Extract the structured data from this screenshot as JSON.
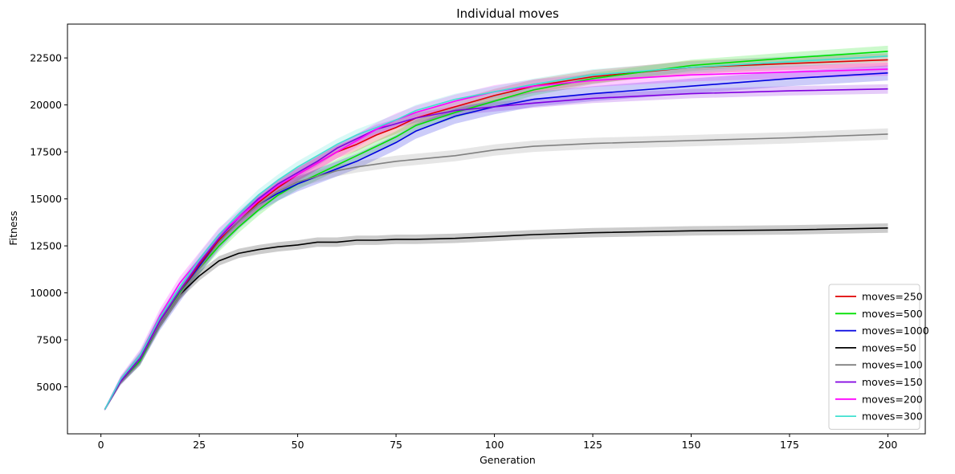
{
  "chart_data": {
    "type": "line",
    "title": "Individual moves",
    "xlabel": "Generation",
    "ylabel": "Fitness",
    "xlim": [
      -8.5,
      209.5
    ],
    "ylim": [
      2500,
      24300
    ],
    "xticks": [
      0,
      25,
      50,
      75,
      100,
      125,
      150,
      175,
      200
    ],
    "yticks": [
      5000,
      7500,
      10000,
      12500,
      15000,
      17500,
      20000,
      22500
    ],
    "legend_position": "lower right",
    "grid": false,
    "x": [
      1,
      5,
      10,
      15,
      20,
      25,
      30,
      35,
      40,
      45,
      50,
      55,
      60,
      65,
      70,
      75,
      80,
      90,
      100,
      110,
      125,
      150,
      175,
      200
    ],
    "series": [
      {
        "name": "moves=250",
        "color": "#e00000",
        "values": [
          3800,
          5300,
          6500,
          8500,
          10000,
          11500,
          12800,
          13800,
          14800,
          15600,
          16300,
          16900,
          17500,
          17900,
          18400,
          18800,
          19300,
          19900,
          20500,
          21000,
          21500,
          22000,
          22200,
          22400
        ],
        "band": 350
      },
      {
        "name": "moves=500",
        "color": "#00e000",
        "values": [
          3800,
          5300,
          6400,
          8400,
          10000,
          11300,
          12500,
          13500,
          14400,
          15200,
          15800,
          16300,
          16800,
          17300,
          17800,
          18300,
          18900,
          19600,
          20200,
          20800,
          21400,
          22100,
          22500,
          22850
        ],
        "band": 300
      },
      {
        "name": "moves=1000",
        "color": "#0000e0",
        "values": [
          3800,
          5300,
          6500,
          8400,
          9900,
          11400,
          12700,
          13800,
          14700,
          15300,
          15800,
          16200,
          16600,
          17000,
          17500,
          18000,
          18600,
          19400,
          19900,
          20300,
          20600,
          21000,
          21400,
          21700
        ],
        "band": 400
      },
      {
        "name": "moves=50",
        "color": "#000000",
        "values": [
          3800,
          5300,
          6500,
          8400,
          9900,
          10900,
          11700,
          12100,
          12300,
          12450,
          12550,
          12700,
          12700,
          12800,
          12800,
          12850,
          12850,
          12900,
          13000,
          13100,
          13200,
          13300,
          13350,
          13450
        ],
        "band": 250
      },
      {
        "name": "moves=100",
        "color": "#808080",
        "values": [
          3800,
          5300,
          6500,
          8400,
          9900,
          11300,
          12700,
          13800,
          14700,
          15400,
          15900,
          16200,
          16500,
          16700,
          16850,
          17000,
          17100,
          17300,
          17600,
          17800,
          17950,
          18100,
          18250,
          18450
        ],
        "band": 300
      },
      {
        "name": "moves=150",
        "color": "#8000e0",
        "values": [
          3800,
          5300,
          6500,
          8500,
          10100,
          11600,
          12900,
          14000,
          15000,
          15800,
          16400,
          17000,
          17700,
          18200,
          18700,
          19000,
          19300,
          19700,
          19900,
          20100,
          20350,
          20600,
          20750,
          20850
        ],
        "band": 250
      },
      {
        "name": "moves=200",
        "color": "#ff00ff",
        "values": [
          3800,
          5400,
          6700,
          8800,
          10500,
          11800,
          13100,
          14000,
          14900,
          15700,
          16300,
          16900,
          17500,
          18100,
          18700,
          19200,
          19600,
          20200,
          20700,
          21000,
          21300,
          21600,
          21750,
          21900
        ],
        "band": 350
      },
      {
        "name": "moves=300",
        "color": "#40e0d0",
        "values": [
          3800,
          5400,
          6700,
          8700,
          10300,
          11800,
          13100,
          14200,
          15200,
          16000,
          16700,
          17300,
          17900,
          18400,
          18800,
          19200,
          19700,
          20300,
          20700,
          21100,
          21600,
          22000,
          22300,
          22600
        ],
        "band": 300
      }
    ]
  }
}
